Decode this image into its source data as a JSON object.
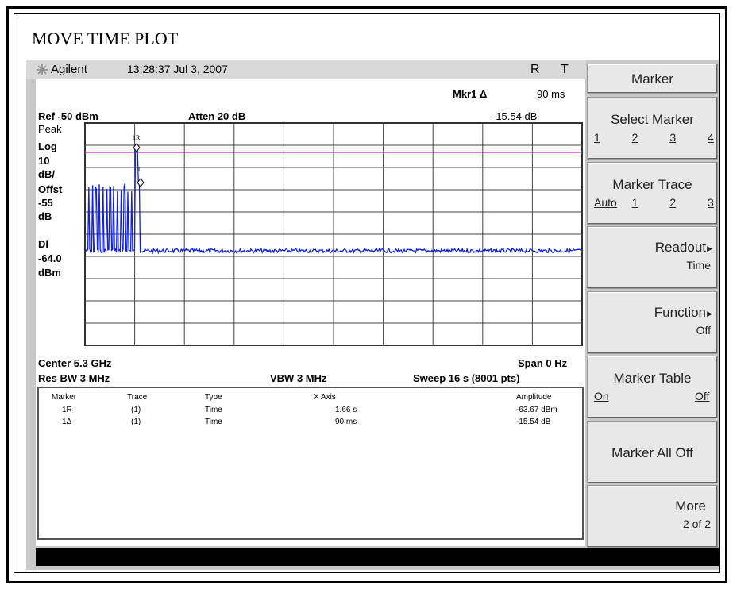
{
  "title": "MOVE TIME PLOT",
  "header": {
    "brand": "Agilent",
    "datetime": "13:28:37 Jul 3, 2007",
    "indicators": [
      "R",
      "T"
    ]
  },
  "display": {
    "marker_readout": {
      "label": "Mkr1 Δ",
      "x": "90 ms",
      "y": "-15.54 dB"
    },
    "ref": "Ref -50 dBm",
    "atten": "Atten 20 dB",
    "left_labels": [
      "Peak",
      "Log",
      "10",
      "dB/",
      "Offst",
      "-55",
      "dB",
      "Dl",
      "-64.0",
      "dBm"
    ],
    "marker_tags": [
      "1R",
      "1"
    ],
    "center": "Center 5.3 GHz",
    "span": "Span 0 Hz",
    "res_bw": "Res BW 3 MHz",
    "vbw": "VBW 3 MHz",
    "sweep": "Sweep 16 s (8001 pts)"
  },
  "table": {
    "columns": [
      "Marker",
      "Trace",
      "Type",
      "X Axis",
      "Amplitude"
    ],
    "rows": [
      [
        "1R",
        "(1)",
        "Time",
        "1.66 s",
        "-63.67 dBm"
      ],
      [
        "1Δ",
        "(1)",
        "Time",
        "90 ms",
        "-15.54 dB"
      ]
    ]
  },
  "softkeys": {
    "title": "Marker",
    "keys": [
      {
        "label": "Select Marker",
        "options": [
          "1",
          "2",
          "3",
          "4"
        ]
      },
      {
        "label": "Marker Trace",
        "options": [
          "Auto",
          "1",
          "2",
          "3"
        ]
      },
      {
        "label": "Readout",
        "sub": "Time"
      },
      {
        "label": "Function",
        "sub": "Off"
      },
      {
        "label": "Marker Table",
        "options": [
          "On",
          "Off"
        ]
      },
      {
        "label": "Marker All Off"
      },
      {
        "label": "More",
        "sub": "2 of 2"
      }
    ]
  }
}
